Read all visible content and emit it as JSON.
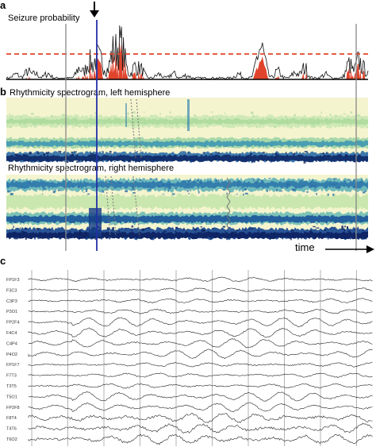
{
  "panel_a": {
    "letter": "a",
    "title": "Seizure probability",
    "colors": {
      "trace": "#111111",
      "fill": "#e0442c",
      "threshold": "#e0442c",
      "marker": "#2430a8"
    }
  },
  "panel_b": {
    "letter": "b",
    "left_title": "Rhythmicity spectrogram, left hemisphere",
    "right_title": "Rhythmicity spectrogram, right hemisphere",
    "time_label": "time",
    "colors": {
      "background": "#f4f4cf",
      "light": "#bfe3a6",
      "mid": "#4aa3b5",
      "dark": "#1a3a8a"
    }
  },
  "panel_c": {
    "letter": "c",
    "channels": [
      "FP1F3",
      "F3C3",
      "C3P3",
      "P3O1",
      "FP2F4",
      "F4C4",
      "C4P4",
      "P4O2",
      "FP1F7",
      "F7T3",
      "T3T5",
      "T5O1",
      "FP2F8",
      "F8T4",
      "T4T6",
      "T6O2"
    ]
  }
}
